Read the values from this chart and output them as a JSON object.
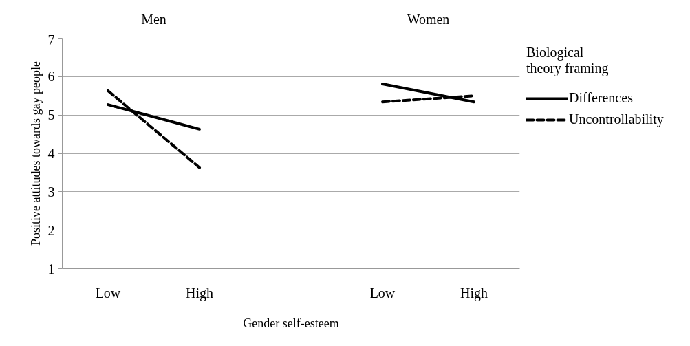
{
  "chart_data": {
    "type": "line",
    "xlabel": "Gender self-esteem",
    "ylabel": "Positive attitudes towards gay people",
    "legend_title": "Biological theory framing",
    "annotations": [
      "Men",
      "Women"
    ],
    "categories": [
      "Low",
      "High",
      null,
      "Low",
      "High"
    ],
    "series": [
      {
        "name": "Differences",
        "color": "#000000",
        "line_style": "solid",
        "values": [
          5.27,
          4.63,
          null,
          5.81,
          5.34
        ]
      },
      {
        "name": "Uncontrollability",
        "color": "#000000",
        "line_style": "dashed",
        "values": [
          5.63,
          3.63,
          null,
          5.34,
          5.5
        ]
      }
    ],
    "ylim": [
      1,
      7
    ],
    "yticks": [
      1,
      2,
      3,
      4,
      5,
      6,
      7
    ],
    "grid": "y",
    "legend": "right",
    "marker": "none"
  }
}
